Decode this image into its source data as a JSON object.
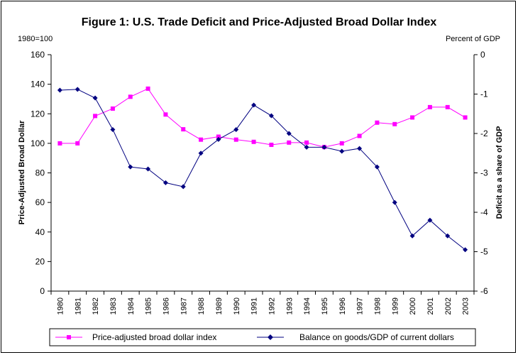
{
  "chart_data": {
    "type": "line",
    "title": "Figure 1: U.S. Trade Deficit and Price-Adjusted Broad Dollar Index",
    "left_unit": "1980=100",
    "right_unit": "Percent of GDP",
    "ylabel_left": "Price-Adjusted Broad Dollar",
    "ylabel_right": "Deficit as a share of GDP",
    "xlabel": "",
    "categories": [
      "1980",
      "1981",
      "1982",
      "1983",
      "1984",
      "1985",
      "1986",
      "1987",
      "1988",
      "1989",
      "1990",
      "1991",
      "1992",
      "1993",
      "1994",
      "1995",
      "1996",
      "1997",
      "1998",
      "1999",
      "2000",
      "2001",
      "2002",
      "2003"
    ],
    "ylim_left": [
      0,
      160
    ],
    "yticks_left": [
      0,
      20,
      40,
      60,
      80,
      100,
      120,
      140,
      160
    ],
    "ylim_right": [
      -6,
      0
    ],
    "yticks_right": [
      0,
      -1,
      -2,
      -3,
      -4,
      -5,
      -6
    ],
    "grid": false,
    "legend_position": "bottom",
    "series": [
      {
        "name": "Price-adjusted broad dollar index",
        "axis": "left",
        "color": "#FF00FF",
        "marker": "square",
        "values": [
          100,
          100,
          118.5,
          123.5,
          131.5,
          137,
          119.5,
          109.5,
          102.5,
          104.5,
          102.5,
          101,
          99,
          100.5,
          100.5,
          97.5,
          100,
          105,
          114,
          113,
          117.5,
          124.5,
          124.5,
          117.5
        ]
      },
      {
        "name": "Balance on goods/GDP of current dollars",
        "axis": "right",
        "color": "#000080",
        "marker": "diamond",
        "values": [
          -0.9,
          -0.88,
          -1.1,
          -1.9,
          -2.85,
          -2.9,
          -3.25,
          -3.35,
          -2.5,
          -2.15,
          -1.9,
          -1.28,
          -1.55,
          -2.0,
          -2.35,
          -2.35,
          -2.45,
          -2.38,
          -2.85,
          -3.75,
          -4.6,
          -4.2,
          -4.6,
          -4.95
        ]
      }
    ]
  }
}
